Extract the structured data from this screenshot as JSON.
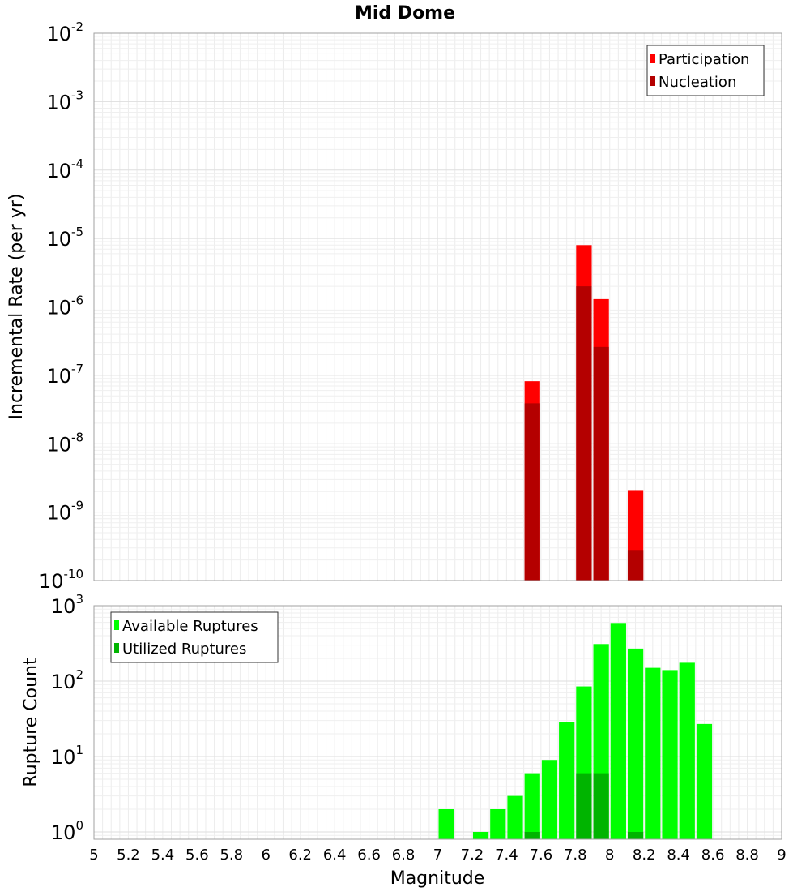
{
  "chart_data": [
    {
      "type": "bar",
      "title": "Mid Dome",
      "ylabel": "Incremental Rate (per yr)",
      "xlabel": "",
      "xlim": [
        5,
        9
      ],
      "ylim": [
        1e-10,
        0.01
      ],
      "yscale": "log",
      "grid": true,
      "legend_position": "top-right",
      "bin_width": 0.1,
      "x": [
        7.55,
        7.85,
        7.95,
        8.15
      ],
      "series": [
        {
          "name": "Participation",
          "color": "#ff0000",
          "values": [
            8.2e-08,
            8e-06,
            1.3e-06,
            2.1e-09
          ]
        },
        {
          "name": "Nucleation",
          "color": "#b40000",
          "values": [
            3.9e-08,
            2e-06,
            2.6e-07,
            2.8e-10
          ]
        }
      ]
    },
    {
      "type": "bar",
      "title": "",
      "ylabel": "Rupture Count",
      "xlabel": "Magnitude",
      "xlim": [
        5,
        9
      ],
      "ylim": [
        0.8,
        1000
      ],
      "yscale": "log",
      "grid": true,
      "legend_position": "top-left",
      "bin_width": 0.1,
      "x": [
        7.05,
        7.25,
        7.35,
        7.45,
        7.55,
        7.65,
        7.75,
        7.85,
        7.95,
        8.05,
        8.15,
        8.25,
        8.35,
        8.45,
        8.55
      ],
      "series": [
        {
          "name": "Available Ruptures",
          "color": "#00ff00",
          "values": [
            2,
            1,
            2,
            3,
            6,
            9,
            29,
            85,
            310,
            590,
            270,
            150,
            140,
            175,
            27
          ]
        },
        {
          "name": "Utilized Ruptures",
          "color": "#00b400",
          "values": [
            0,
            0,
            0,
            0,
            1,
            0,
            0,
            6,
            6,
            0,
            1,
            0,
            0,
            0,
            0
          ]
        }
      ]
    }
  ],
  "x_ticks": [
    "5",
    "5.2",
    "5.4",
    "5.6",
    "5.8",
    "6",
    "6.2",
    "6.4",
    "6.6",
    "6.8",
    "7",
    "7.2",
    "7.4",
    "7.6",
    "7.8",
    "8",
    "8.2",
    "8.4",
    "8.6",
    "8.8",
    "9"
  ],
  "top_y_exponents": [
    "-2",
    "-3",
    "-4",
    "-5",
    "-6",
    "-7",
    "-8",
    "-9",
    "-10"
  ],
  "bottom_y_exponents": [
    "3",
    "2",
    "1",
    "0"
  ],
  "y_tick_base": "10"
}
